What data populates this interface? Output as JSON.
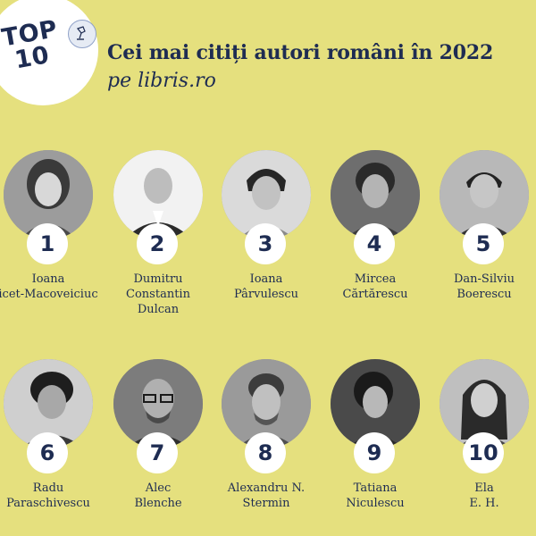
{
  "badge": {
    "line1": "TOP",
    "line2": "10"
  },
  "header": {
    "title": "Cei mai citiți autori români în 2022",
    "subtitle": "pe libris.ro"
  },
  "authors": [
    {
      "rank": "1",
      "name_lines": [
        "Ioana",
        "icet-Macoveiciuc"
      ]
    },
    {
      "rank": "2",
      "name_lines": [
        "Dumitru",
        "Constantin",
        "Dulcan"
      ]
    },
    {
      "rank": "3",
      "name_lines": [
        "Ioana",
        "Pârvulescu"
      ]
    },
    {
      "rank": "4",
      "name_lines": [
        "Mircea",
        "Cărtărescu"
      ]
    },
    {
      "rank": "5",
      "name_lines": [
        "Dan-Silviu",
        "Boerescu"
      ]
    },
    {
      "rank": "6",
      "name_lines": [
        "Radu",
        "Paraschivescu"
      ]
    },
    {
      "rank": "7",
      "name_lines": [
        "Alec",
        "Blenche"
      ]
    },
    {
      "rank": "8",
      "name_lines": [
        "Alexandru N.",
        "Stermin"
      ]
    },
    {
      "rank": "9",
      "name_lines": [
        "Tatiana",
        "Niculescu"
      ]
    },
    {
      "rank": "10",
      "name_lines": [
        "Ela",
        "E. H."
      ]
    }
  ],
  "colors": {
    "background": "#e5e07e",
    "text": "#1e2c52",
    "badge": "#ffffff"
  },
  "icons": {
    "badge": "lamp-icon"
  }
}
